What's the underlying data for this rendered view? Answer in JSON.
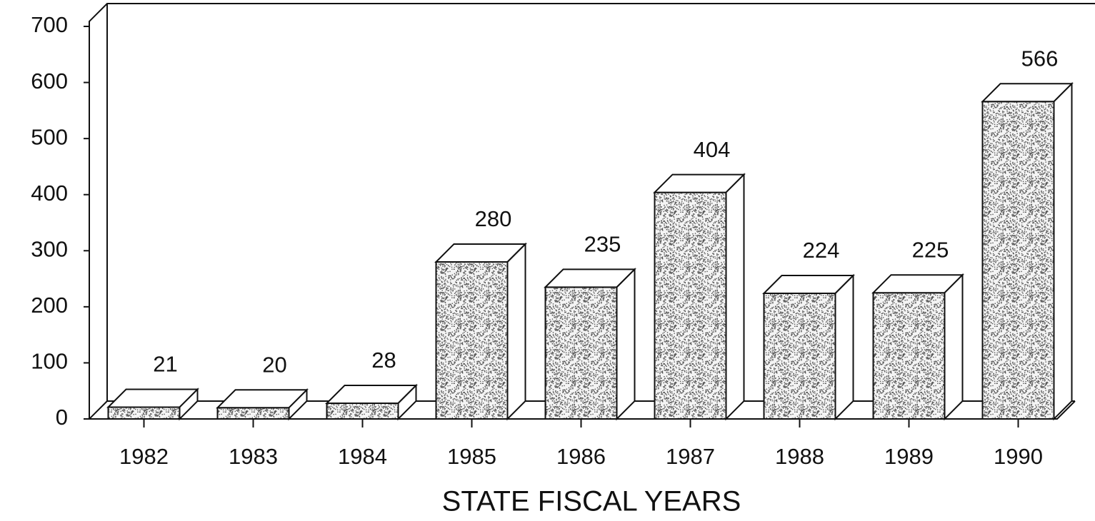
{
  "chart_data": {
    "type": "bar3d",
    "xlabel": "STATE FISCAL YEARS",
    "categories": [
      "1982",
      "1983",
      "1984",
      "1985",
      "1986",
      "1987",
      "1988",
      "1989",
      "1990"
    ],
    "values": [
      21,
      20,
      28,
      280,
      235,
      404,
      224,
      225,
      566
    ],
    "color": "#555555",
    "ylim": [
      0,
      700
    ],
    "yticks": [
      0,
      100,
      200,
      300,
      400,
      500,
      600,
      700
    ]
  }
}
